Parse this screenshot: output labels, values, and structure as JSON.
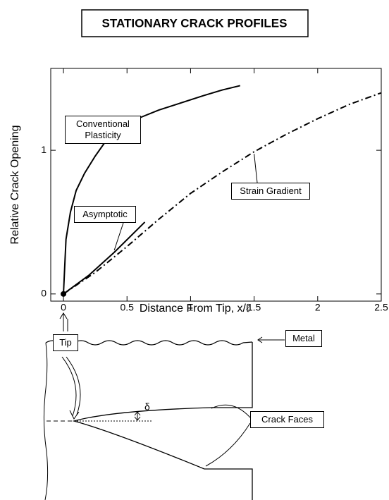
{
  "chart_data": {
    "type": "line",
    "title": "STATIONARY CRACK PROFILES",
    "x_label": "Distance From Tip,  x/ℓ",
    "y_label": "Relative Crack Opening",
    "xlim": [
      -0.1,
      2.5
    ],
    "ylim": [
      -0.05,
      1.57
    ],
    "xticks": [
      0,
      0.5,
      1,
      1.5,
      2,
      2.5
    ],
    "yticks": [
      0,
      1
    ],
    "series": [
      {
        "name": "Conventional Plasticity",
        "color": "#000000",
        "style": "solid",
        "x": [
          0,
          0.02,
          0.055,
          0.1,
          0.166,
          0.25,
          0.33,
          0.45,
          0.61,
          0.75,
          0.89,
          1.1,
          1.25,
          1.39
        ],
        "values": [
          0,
          0.38,
          0.57,
          0.72,
          0.84,
          0.96,
          1.06,
          1.14,
          1.23,
          1.28,
          1.32,
          1.38,
          1.42,
          1.45
        ]
      },
      {
        "name": "Asymptotic",
        "color": "#000000",
        "style": "solid",
        "x": [
          0,
          0.2,
          0.4,
          0.64
        ],
        "values": [
          0,
          0.13,
          0.29,
          0.5
        ]
      },
      {
        "name": "Strain Gradient",
        "color": "#000000",
        "style": "dashdot",
        "x": [
          0,
          0.25,
          0.5,
          0.75,
          1,
          1.25,
          1.5,
          1.75,
          2,
          2.25,
          2.5
        ],
        "values": [
          0,
          0.15,
          0.33,
          0.52,
          0.7,
          0.85,
          0.99,
          1.11,
          1.22,
          1.32,
          1.4
        ]
      }
    ]
  },
  "diagram": {
    "tip": "Tip",
    "metal": "Metal",
    "crack_faces": "Crack Faces",
    "delta": "δ"
  }
}
